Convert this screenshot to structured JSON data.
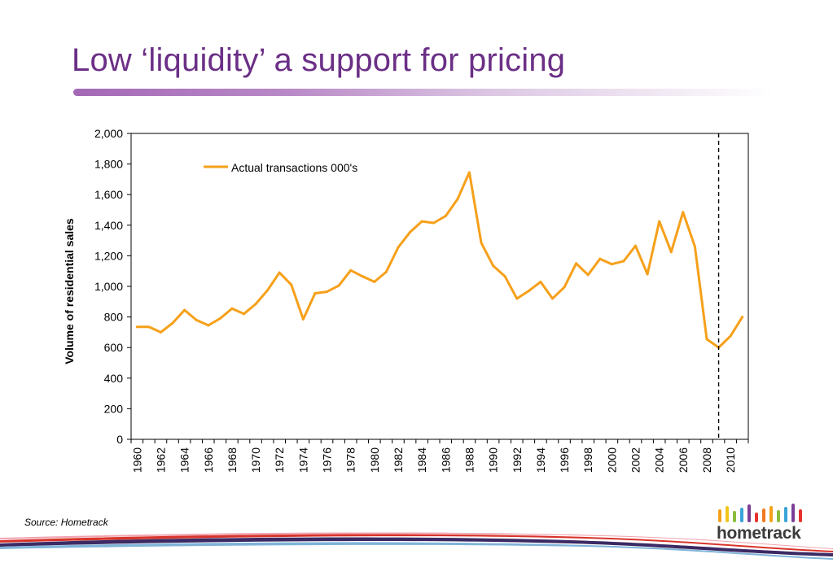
{
  "slide": {
    "title": "Low ‘liquidity’ a support for pricing",
    "source": "Source: Hometrack"
  },
  "logo": {
    "text": "hometrack",
    "bar_colors": [
      "#f3a21a",
      "#f0c51c",
      "#8bbd3a",
      "#3aa3d8",
      "#7b3f95",
      "#e8322c",
      "#f07a1f",
      "#f3a21a",
      "#8bbd3a",
      "#3aa3d8",
      "#7b3f95",
      "#e8322c"
    ]
  },
  "colors": {
    "title": "#6b2f86",
    "series": "#f6a01a",
    "axis": "#000000",
    "marker_line": "#000000"
  },
  "chart_data": {
    "type": "line",
    "title": "",
    "xlabel": "",
    "ylabel": "Volume of residential sales",
    "ylim": [
      0,
      2000
    ],
    "yticks": [
      0,
      200,
      400,
      600,
      800,
      1000,
      1200,
      1400,
      1600,
      1800,
      2000
    ],
    "ytick_labels": [
      "0",
      "200",
      "400",
      "600",
      "800",
      "1,000",
      "1,200",
      "1,400",
      "1,600",
      "1,800",
      "2,000"
    ],
    "xlim": [
      1959.5,
      2011.5
    ],
    "xtick_labels": [
      "1960",
      "1962",
      "1964",
      "1966",
      "1968",
      "1970",
      "1972",
      "1974",
      "1976",
      "1978",
      "1980",
      "1982",
      "1984",
      "1986",
      "1988",
      "1990",
      "1992",
      "1994",
      "1996",
      "1998",
      "2000",
      "2002",
      "2004",
      "2006",
      "2008",
      "2010"
    ],
    "grid": false,
    "legend_position": "top-left",
    "marker_year": 2009,
    "series": [
      {
        "name": "Actual transactions 000's",
        "x": [
          1960,
          1961,
          1962,
          1963,
          1964,
          1965,
          1966,
          1967,
          1968,
          1969,
          1970,
          1971,
          1972,
          1973,
          1974,
          1975,
          1976,
          1977,
          1978,
          1979,
          1980,
          1981,
          1982,
          1983,
          1984,
          1985,
          1986,
          1987,
          1988,
          1989,
          1990,
          1991,
          1992,
          1993,
          1994,
          1995,
          1996,
          1997,
          1998,
          1999,
          2000,
          2001,
          2002,
          2003,
          2004,
          2005,
          2006,
          2007,
          2008,
          2009,
          2010,
          2011
        ],
        "values": [
          735,
          735,
          700,
          760,
          845,
          780,
          745,
          790,
          855,
          820,
          885,
          975,
          1090,
          1010,
          785,
          955,
          965,
          1005,
          1105,
          1065,
          1030,
          1095,
          1255,
          1355,
          1425,
          1415,
          1460,
          1570,
          1745,
          1285,
          1135,
          1065,
          920,
          970,
          1030,
          920,
          995,
          1150,
          1075,
          1180,
          1145,
          1165,
          1265,
          1080,
          1425,
          1225,
          1485,
          1260,
          655,
          600,
          675,
          800
        ]
      }
    ]
  }
}
